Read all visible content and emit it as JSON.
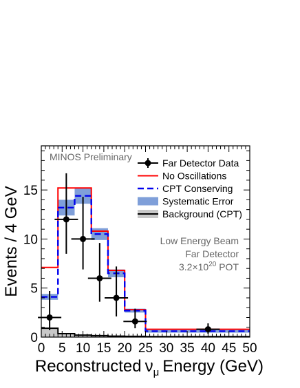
{
  "chart_data": {
    "type": "histogram",
    "annotation": "MINOS Preliminary",
    "xlabel_parts": {
      "pre": "Reconstructed",
      "nu": "ν",
      "sub": "μ",
      "post": "Energy (GeV)"
    },
    "ylabel": "Events / 4 GeV",
    "xlim": [
      0,
      50
    ],
    "ylim": [
      0,
      19.5
    ],
    "x_ticks": [
      0,
      5,
      10,
      15,
      20,
      25,
      30,
      35,
      40,
      45,
      50
    ],
    "x_tick_labels": [
      "0",
      "5",
      "10",
      "15",
      "20",
      "25",
      "30",
      "35",
      "40",
      "45",
      "50"
    ],
    "y_ticks": [
      0,
      5,
      10,
      15
    ],
    "y_tick_labels": [
      "0",
      "5",
      "10",
      "15"
    ],
    "bin_edges": [
      0,
      4,
      8,
      12,
      16,
      20,
      25,
      30,
      50
    ],
    "series": [
      {
        "name": "Far Detector Data",
        "style": "points-errorbars",
        "color": "#000000",
        "points": [
          {
            "x": 2,
            "y": 2,
            "y_low": 0.7,
            "y_high": 4.7
          },
          {
            "x": 6,
            "y": 12,
            "y_low": 8.5,
            "y_high": 16.7
          },
          {
            "x": 10,
            "y": 10,
            "y_low": 6.9,
            "y_high": 14.3
          },
          {
            "x": 14,
            "y": 6,
            "y_low": 3.6,
            "y_high": 9.6
          },
          {
            "x": 18,
            "y": 4,
            "y_low": 2.1,
            "y_high": 7.2
          },
          {
            "x": 22.5,
            "y": 1.6,
            "y_low": 0.9,
            "y_high": 2.9
          },
          {
            "x": 40,
            "y": 0.8,
            "y_low": 0.35,
            "y_high": 1.4
          }
        ]
      },
      {
        "name": "No Oscillations",
        "style": "step",
        "color": "#ff0000",
        "values": [
          7.1,
          15.2,
          15.2,
          10.8,
          6.8,
          2.8,
          0.8,
          0.8
        ]
      },
      {
        "name": "CPT Conserving",
        "style": "step-dashed",
        "color": "#0000ee",
        "values": [
          4.1,
          13.2,
          14.4,
          10.5,
          6.5,
          2.7,
          0.6,
          0.6
        ]
      },
      {
        "name": "Systematic Error",
        "style": "band",
        "color": "#7f9fd9",
        "lower": [
          3.8,
          12.4,
          13.6,
          9.9,
          6.1,
          2.5,
          0.45,
          0.45
        ],
        "upper": [
          4.4,
          14.0,
          15.2,
          11.1,
          6.9,
          2.9,
          0.75,
          0.75
        ]
      },
      {
        "name": "Background (CPT)",
        "style": "filled-step",
        "color": "#000000",
        "fill": "#c8c8c8",
        "values": [
          0.9,
          0.35,
          0.2,
          0.15,
          0.1,
          0.08,
          0.05,
          0.05
        ]
      }
    ],
    "legend_position": "top-right",
    "notes": [
      "Low Energy Beam",
      "Far Detector"
    ],
    "pot_note": {
      "pre": "3.2×10",
      "exp": "20",
      "post": " POT"
    }
  }
}
